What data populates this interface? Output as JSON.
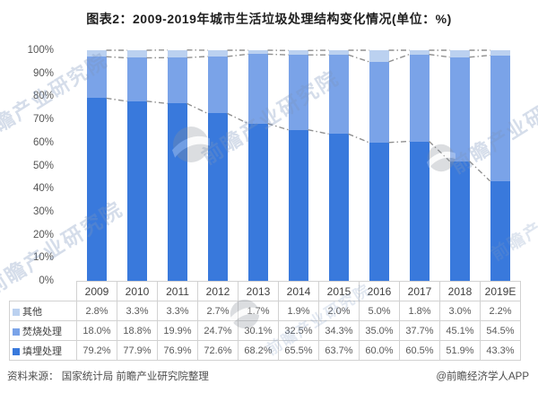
{
  "title": "图表2：2009-2019年城市生活垃圾处理结构变化情况(单位：%)",
  "chart_data": {
    "type": "bar",
    "variant": "100%-stacked-column-with-series-lines",
    "title": "图表2：2009-2019年城市生活垃圾处理结构变化情况(单位：%)",
    "categories": [
      "2009",
      "2010",
      "2011",
      "2012",
      "2013",
      "2014",
      "2015",
      "2016",
      "2017",
      "2018",
      "2019E"
    ],
    "series": [
      {
        "name": "填埋处理",
        "color": "#3979dc",
        "values": [
          79.2,
          77.9,
          76.9,
          72.6,
          68.2,
          65.5,
          63.7,
          60.0,
          60.5,
          51.9,
          43.3
        ]
      },
      {
        "name": "焚烧处理",
        "color": "#7aa3e8",
        "values": [
          18.0,
          18.8,
          19.9,
          24.7,
          30.1,
          32.5,
          34.3,
          35.0,
          37.7,
          45.1,
          54.5
        ]
      },
      {
        "name": "其他",
        "color": "#bbd1f0",
        "values": [
          2.8,
          3.3,
          3.3,
          2.7,
          1.7,
          1.9,
          2.0,
          5.0,
          1.8,
          3.0,
          2.2
        ]
      }
    ],
    "table_row_order": [
      "其他",
      "焚烧处理",
      "填埋处理"
    ],
    "y_ticks": [
      "0%",
      "10%",
      "20%",
      "30%",
      "40%",
      "50%",
      "60%",
      "70%",
      "80%",
      "90%",
      "100%"
    ],
    "ylim": [
      0,
      100
    ],
    "grid": false,
    "xlabel": "",
    "ylabel": "",
    "unit": "%",
    "legend_position": "table-left-column",
    "series_line_color": "#919191"
  },
  "footer": {
    "source": "资料来源： 国家统计局 前瞻产业研究院整理",
    "credit": "@前瞻经济学人APP"
  },
  "watermark": {
    "text": "前瞻产业研究院",
    "logo": "qianzhan-globe-logo"
  }
}
